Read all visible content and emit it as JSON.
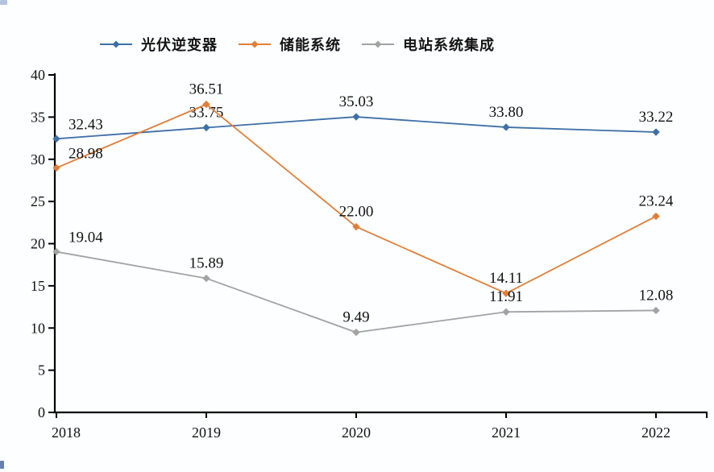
{
  "chart_data": {
    "type": "line",
    "title": "",
    "xlabel": "",
    "ylabel": "",
    "categories": [
      "2018",
      "2019",
      "2020",
      "2021",
      "2022"
    ],
    "series": [
      {
        "name": "光伏逆变器",
        "color": "#3e6fa6",
        "values": [
          32.43,
          33.75,
          35.03,
          33.8,
          33.22
        ],
        "labels": [
          "32.43",
          "33.75",
          "35.03",
          "33.80",
          "33.22"
        ]
      },
      {
        "name": "储能系统",
        "color": "#e07e38",
        "values": [
          28.98,
          36.51,
          22.0,
          14.11,
          23.24
        ],
        "labels": [
          "28.98",
          "36.51",
          "22.00",
          "14.11",
          "23.24"
        ]
      },
      {
        "name": "电站系统集成",
        "color": "#a3a3a3",
        "values": [
          19.04,
          15.89,
          9.49,
          11.91,
          12.08
        ],
        "labels": [
          "19.04",
          "15.89",
          "9.49",
          "11.91",
          "12.08"
        ]
      }
    ],
    "ylim": [
      0,
      40
    ],
    "yticks": [
      0,
      5,
      10,
      15,
      20,
      25,
      30,
      35,
      40
    ],
    "ytick_labels": [
      "0",
      "5",
      "10",
      "15",
      "20",
      "25",
      "30",
      "35",
      "40"
    ],
    "grid": false,
    "legend_position": "top",
    "marker": "diamond",
    "axis_color": "#000000",
    "data_label_color": "#111111"
  }
}
